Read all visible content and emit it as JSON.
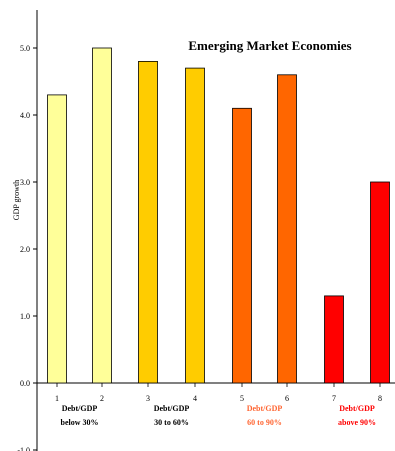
{
  "chart_data": {
    "type": "bar",
    "title": "Emerging Market Economies",
    "ylabel": "GDP growth",
    "xlabel": "",
    "categories": [
      "1",
      "2",
      "3",
      "4",
      "5",
      "6",
      "7",
      "8"
    ],
    "values": [
      4.3,
      5.0,
      4.8,
      4.7,
      4.1,
      4.6,
      1.3,
      3.0
    ],
    "bar_colors": [
      "#ffff99",
      "#ffff99",
      "#ffcc00",
      "#ffcc00",
      "#ff6600",
      "#ff6600",
      "#ff0000",
      "#ff0000"
    ],
    "ylim": [
      -1.0,
      5.5
    ],
    "yticks": [
      "-1.0",
      "0.0",
      "1.0",
      "2.0",
      "3.0",
      "4.0",
      "5.0"
    ],
    "ytick_values": [
      -1.0,
      0.0,
      1.0,
      2.0,
      3.0,
      4.0,
      5.0
    ],
    "groups": [
      {
        "line1": "Debt/GDP",
        "line2": "below 30%",
        "color": "#000000",
        "bars": [
          0,
          1
        ]
      },
      {
        "line1": "Debt/GDP",
        "line2": "30 to 60%",
        "color": "#000000",
        "bars": [
          2,
          3
        ]
      },
      {
        "line1": "Debt/GDP",
        "line2": "60 to 90%",
        "color": "#ff6633",
        "bars": [
          4,
          5
        ]
      },
      {
        "line1": "Debt/GDP",
        "line2": "above 90%",
        "color": "#ff0000",
        "bars": [
          6,
          7
        ]
      }
    ],
    "grid": false
  }
}
